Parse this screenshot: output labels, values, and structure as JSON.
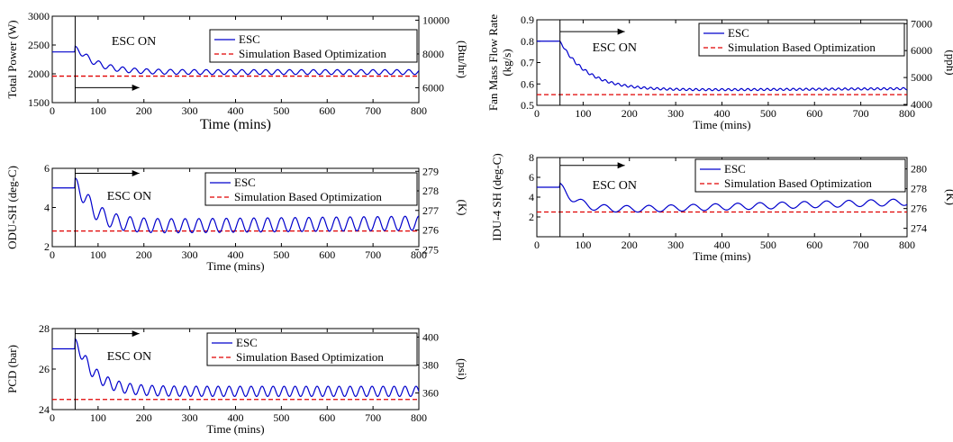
{
  "chart_data": [
    {
      "type": "line",
      "id": "total-power",
      "ylabel": "Total Power (W)",
      "ylabel2": "(Btu/hr)",
      "xlabel": "Time (mins)",
      "xlim": [
        0,
        800
      ],
      "ylim": [
        1500,
        3000
      ],
      "yticks": [
        1500,
        2000,
        2500,
        3000
      ],
      "y2lim": [
        5118,
        10236
      ],
      "y2ticks": [
        6000,
        8000,
        10000
      ],
      "xticks": [
        0,
        100,
        200,
        300,
        400,
        500,
        600,
        700,
        800
      ],
      "annotation": "ESC ON",
      "esc_on_time": 50,
      "arrow_from_x": 50,
      "arrow_to_x": 190,
      "arrow_y": 1760,
      "series": [
        {
          "name": "ESC",
          "color": "#0000cc",
          "dash": "solid",
          "start": 2380,
          "final": 2030,
          "initial_peak": 2480,
          "amplitude": 70,
          "period": 26,
          "tau": 45,
          "drift": 0
        },
        {
          "name": "Simulation Based Optimization",
          "color": "#e00000",
          "dash": "dashed",
          "value": 1960
        }
      ]
    },
    {
      "type": "line",
      "id": "fan-mass-flow",
      "ylabel": "Fan Mass Flow Rate",
      "ylabel_line2": "(kg/s)",
      "ylabel2": "(pph)",
      "xlabel": "Time (mins)",
      "xlim": [
        0,
        800
      ],
      "ylim": [
        0.5,
        0.9
      ],
      "yticks": [
        0.5,
        0.6,
        0.7,
        0.8,
        0.9
      ],
      "y2lim": [
        3968,
        7143
      ],
      "y2ticks": [
        4000,
        5000,
        6000,
        7000
      ],
      "xticks": [
        0,
        100,
        200,
        300,
        400,
        500,
        600,
        700,
        800
      ],
      "annotation": "ESC ON",
      "esc_on_time": 50,
      "arrow_from_x": 50,
      "arrow_to_x": 190,
      "arrow_y": 0.845,
      "series": [
        {
          "name": "ESC",
          "color": "#0000cc",
          "dash": "solid",
          "start": 0.8,
          "final": 0.568,
          "initial_peak": 0.8,
          "amplitude": 0.008,
          "period": 14,
          "tau": 60,
          "drift": 0.01
        },
        {
          "name": "Simulation Based Optimization",
          "color": "#e00000",
          "dash": "dashed",
          "value": 0.55
        }
      ]
    },
    {
      "type": "line",
      "id": "odu-sh",
      "ylabel": "ODU-SH (deg-C)",
      "ylabel2": "(K)",
      "xlabel": "Time (mins)",
      "xlim": [
        0,
        800
      ],
      "ylim": [
        2,
        6
      ],
      "yticks": [
        2,
        4,
        6
      ],
      "y2lim": [
        275.15,
        279.15
      ],
      "y2ticks": [
        275,
        276,
        277,
        278,
        279
      ],
      "xticks": [
        0,
        100,
        200,
        300,
        400,
        500,
        600,
        700,
        800
      ],
      "annotation": "ESC ON",
      "esc_on_time": 50,
      "arrow_from_x": 50,
      "arrow_to_x": 190,
      "arrow_y": 5.75,
      "series": [
        {
          "name": "ESC",
          "color": "#0000cc",
          "dash": "solid",
          "start": 5.0,
          "final": 3.0,
          "initial_peak": 5.5,
          "amplitude": 0.6,
          "period": 30,
          "tau": 40,
          "drift": 0.2
        },
        {
          "name": "Simulation Based Optimization",
          "color": "#e00000",
          "dash": "dashed",
          "value": 2.8
        }
      ]
    },
    {
      "type": "line",
      "id": "idu-4-sh",
      "ylabel": "IDU-4 SH (deg-C)",
      "ylabel2": "(K)",
      "xlabel": "Time (mins)",
      "xlim": [
        0,
        800
      ],
      "ylim": [
        0,
        8
      ],
      "yticks": [
        2,
        4,
        6,
        8
      ],
      "y2lim": [
        273.15,
        281.15
      ],
      "y2ticks": [
        274,
        276,
        278,
        280
      ],
      "xticks": [
        0,
        100,
        200,
        300,
        400,
        500,
        600,
        700,
        800
      ],
      "annotation": "ESC ON",
      "esc_on_time": 50,
      "arrow_from_x": 50,
      "arrow_to_x": 190,
      "arrow_y": 7.2,
      "series": [
        {
          "name": "ESC",
          "color": "#0000cc",
          "dash": "solid",
          "start": 5.0,
          "final": 2.6,
          "initial_peak": 5.4,
          "amplitude": 0.55,
          "period": 48,
          "tau": 35,
          "drift": 0.9
        },
        {
          "name": "Simulation Based Optimization",
          "color": "#e00000",
          "dash": "dashed",
          "value": 2.5
        }
      ]
    },
    {
      "type": "line",
      "id": "pcd",
      "ylabel": "PCD (bar)",
      "ylabel2": "(psi)",
      "xlabel": "Time (mins)",
      "xlim": [
        0,
        800
      ],
      "ylim": [
        24,
        28
      ],
      "yticks": [
        24,
        26,
        28
      ],
      "y2lim": [
        348.1,
        406.1
      ],
      "y2ticks": [
        360,
        380,
        400
      ],
      "xticks": [
        0,
        100,
        200,
        300,
        400,
        500,
        600,
        700,
        800
      ],
      "annotation": "ESC ON",
      "esc_on_time": 50,
      "arrow_from_x": 50,
      "arrow_to_x": 190,
      "arrow_y": 27.75,
      "series": [
        {
          "name": "ESC",
          "color": "#0000cc",
          "dash": "solid",
          "start": 27.0,
          "final": 24.9,
          "initial_peak": 27.5,
          "amplitude": 0.42,
          "period": 24,
          "tau": 40,
          "drift": 0
        },
        {
          "name": "Simulation Based Optimization",
          "color": "#e00000",
          "dash": "dashed",
          "value": 24.5
        }
      ]
    }
  ]
}
